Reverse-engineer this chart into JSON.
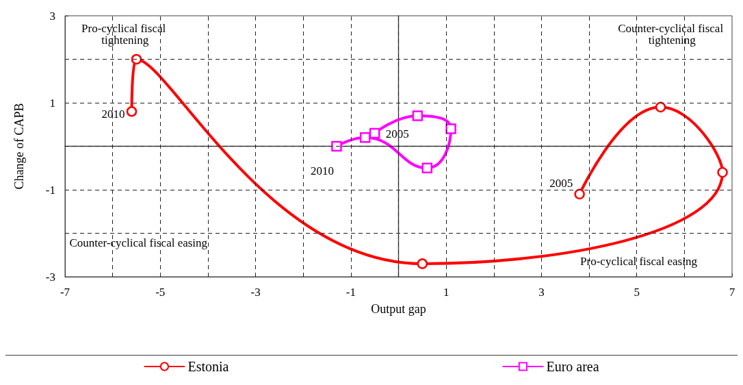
{
  "chart_data": {
    "type": "line",
    "xlabel": "Output gap",
    "ylabel": "Change of CAPB",
    "xlim": [
      -7,
      7
    ],
    "xticks": [
      -7,
      {
        "value": -6,
        "label": null
      },
      -5,
      {
        "value": -4,
        "label": null
      },
      -3,
      {
        "value": -2,
        "label": null
      },
      -1,
      {
        "value": 0,
        "label": null
      },
      1,
      {
        "value": 2,
        "label": null
      },
      3,
      {
        "value": 4,
        "label": null
      },
      5,
      {
        "value": 6,
        "label": null
      },
      7
    ],
    "ylim": [
      -3,
      3
    ],
    "yticks": [
      -3,
      {
        "value": -2,
        "label": null
      },
      -1,
      {
        "value": 0,
        "label": null
      },
      1,
      {
        "value": 2,
        "label": null
      },
      3
    ],
    "grid": true,
    "legend": "bottom",
    "line_style": "solid",
    "series": [
      {
        "name": "Estonia",
        "color": "#ff0000",
        "marker": "circle",
        "x": [
          3.8,
          5.5,
          6.8,
          0.5,
          -5.5,
          -5.6
        ],
        "values": [
          -1.1,
          0.9,
          -0.6,
          -2.7,
          2.0,
          0.8
        ]
      },
      {
        "name": "Euro area",
        "color": "#ff00ff",
        "marker": "square",
        "x": [
          -0.5,
          0.4,
          1.1,
          0.6,
          -0.7,
          -1.3
        ],
        "values": [
          0.3,
          0.7,
          0.4,
          -0.5,
          0.2,
          0.0
        ]
      }
    ],
    "annotations": [
      "Pro-cyclical fiscal tightening",
      "Counter-cyclical fiscal tightening",
      "Counter-cyclical fiscal easing",
      "Pro-cyclical fiscal easing",
      {
        "text": "2005",
        "x": 3.8,
        "y": -1.1
      },
      {
        "text": "2010",
        "x": -5.6,
        "y": 0.8
      },
      {
        "text": "2005",
        "x": -0.5,
        "y": 0.3
      },
      {
        "text": "2010",
        "x": -1.3,
        "y": 0.0
      }
    ]
  }
}
